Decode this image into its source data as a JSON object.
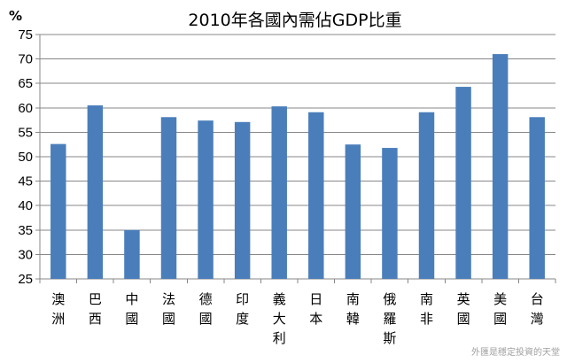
{
  "chart_data": {
    "type": "bar",
    "title": "2010年各國內需佔GDP比重",
    "ylabel": "%",
    "xlabel": "",
    "categories": [
      "澳洲",
      "巴西",
      "中國",
      "法國",
      "德國",
      "印度",
      "義大利",
      "日本",
      "南韓",
      "俄羅斯",
      "南非",
      "英國",
      "美國",
      "台灣"
    ],
    "values": [
      52.6,
      60.5,
      35.0,
      58.1,
      57.4,
      57.1,
      60.3,
      59.1,
      52.5,
      51.8,
      59.1,
      64.3,
      71.0,
      58.1
    ],
    "ylim": [
      25,
      75
    ],
    "yticks": [
      25,
      30,
      35,
      40,
      45,
      50,
      55,
      60,
      65,
      70,
      75
    ],
    "grid": true,
    "legend": "none",
    "bar_color": "#4a7ebb",
    "grid_color": "#878787",
    "axis_color": "#878787"
  },
  "watermark": "外匯是穩定投資的天堂"
}
